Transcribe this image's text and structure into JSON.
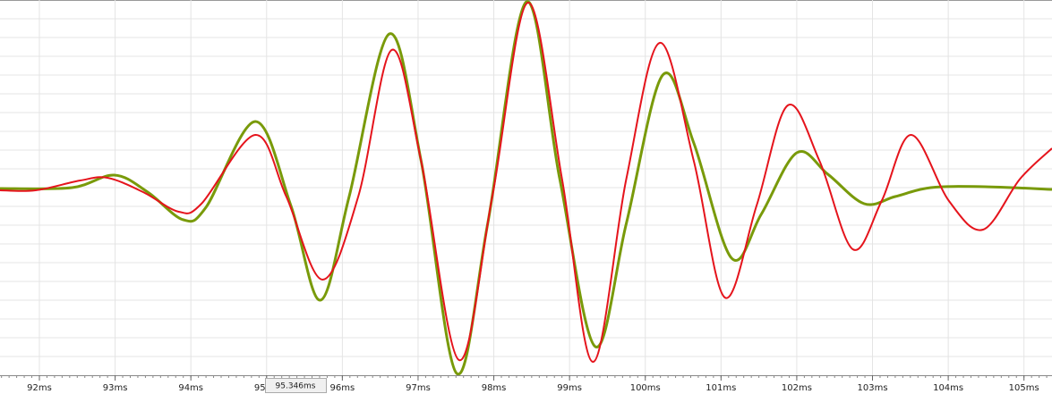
{
  "chart_data": {
    "type": "line",
    "xlim": [
      91.48,
      105.37
    ],
    "ylim": [
      -1.05,
      1.05
    ],
    "xticks": [
      {
        "value": 92,
        "label": "92ms"
      },
      {
        "value": 93,
        "label": "93ms"
      },
      {
        "value": 94,
        "label": "94ms"
      },
      {
        "value": 95,
        "label": "95ms"
      },
      {
        "value": 96,
        "label": "96ms"
      },
      {
        "value": 97,
        "label": "97ms"
      },
      {
        "value": 98,
        "label": "98ms"
      },
      {
        "value": 99,
        "label": "99ms"
      },
      {
        "value": 100,
        "label": "100ms"
      },
      {
        "value": 101,
        "label": "101ms"
      },
      {
        "value": 102,
        "label": "102ms"
      },
      {
        "value": 103,
        "label": "103ms"
      },
      {
        "value": 104,
        "label": "104ms"
      },
      {
        "value": 105,
        "label": "105ms"
      }
    ],
    "grid": true,
    "cursor_label": "95.346ms",
    "series": [
      {
        "color": "#799a0a",
        "width": 3,
        "x": [
          91.48,
          92.43,
          92.99,
          93.43,
          93.9,
          94.2,
          94.85,
          95.32,
          95.71,
          96.09,
          96.62,
          97.04,
          97.51,
          97.92,
          98.43,
          98.87,
          99.34,
          99.75,
          100.23,
          100.64,
          101.14,
          101.53,
          102.0,
          102.41,
          102.89,
          103.3,
          103.77,
          104.48,
          105.37
        ],
        "values": [
          -0.005,
          0,
          0.07,
          -0.025,
          -0.18,
          -0.11,
          0.37,
          -0.1,
          -0.63,
          -0.05,
          0.86,
          0.15,
          -1.04,
          -0.2,
          1.04,
          0.05,
          -0.89,
          -0.2,
          0.63,
          0.25,
          -0.395,
          -0.15,
          0.195,
          0.075,
          -0.09,
          -0.05,
          0,
          0.005,
          -0.01
        ]
      },
      {
        "color": "#e5141c",
        "width": 2,
        "x": [
          91.48,
          91.95,
          92.54,
          92.9,
          93.37,
          93.84,
          94.14,
          94.85,
          95.26,
          95.74,
          96.21,
          96.65,
          97.04,
          97.54,
          97.98,
          98.45,
          98.9,
          99.31,
          99.75,
          100.19,
          100.64,
          101.05,
          101.47,
          101.88,
          102.3,
          102.74,
          103.12,
          103.51,
          104.01,
          104.46,
          104.95,
          105.37
        ],
        "values": [
          -0.015,
          -0.015,
          0.04,
          0.055,
          -0.025,
          -0.135,
          -0.09,
          0.295,
          -0.05,
          -0.515,
          -0.05,
          0.77,
          0.15,
          -0.965,
          -0.05,
          1.035,
          0.05,
          -0.975,
          0.05,
          0.81,
          0.15,
          -0.615,
          -0.1,
          0.46,
          0.15,
          -0.345,
          -0.075,
          0.295,
          -0.075,
          -0.235,
          0.05,
          0.22
        ]
      }
    ]
  }
}
